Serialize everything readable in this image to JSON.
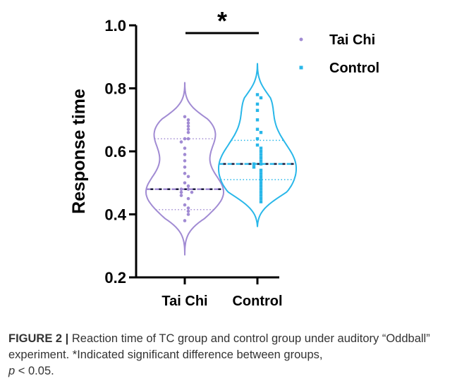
{
  "chart_data": {
    "type": "violin",
    "ylabel": "Response time",
    "ylim": [
      0.2,
      1.0
    ],
    "yticks": [
      "0.2",
      "0.4",
      "0.6",
      "0.8",
      "1.0"
    ],
    "categories": [
      "Tai Chi",
      "Control"
    ],
    "legend": {
      "position": "top-right"
    },
    "significance": {
      "marker": "*",
      "between": [
        "Tai Chi",
        "Control"
      ]
    },
    "series": [
      {
        "name": "Tai Chi",
        "color": "#a18bd3",
        "median": 0.48,
        "q1": 0.415,
        "q3": 0.64,
        "range": [
          0.27,
          0.82
        ],
        "points": [
          0.71,
          0.7,
          0.69,
          0.68,
          0.67,
          0.66,
          0.64,
          0.64,
          0.63,
          0.61,
          0.59,
          0.57,
          0.55,
          0.53,
          0.52,
          0.5,
          0.49,
          0.48,
          0.48,
          0.47,
          0.47,
          0.46,
          0.45,
          0.43,
          0.42,
          0.41,
          0.4,
          0.38
        ]
      },
      {
        "name": "Control",
        "color": "#29b7e9",
        "median": 0.56,
        "q1": 0.51,
        "q3": 0.635,
        "range": [
          0.36,
          0.88
        ],
        "points": [
          0.78,
          0.77,
          0.75,
          0.73,
          0.7,
          0.67,
          0.66,
          0.64,
          0.62,
          0.61,
          0.6,
          0.59,
          0.58,
          0.57,
          0.56,
          0.56,
          0.55,
          0.54,
          0.53,
          0.52,
          0.51,
          0.5,
          0.49,
          0.48,
          0.47,
          0.46,
          0.45,
          0.44
        ]
      }
    ]
  },
  "caption": {
    "label": "FIGURE 2 |",
    "text": "Reaction time of TC group and control group under auditory “Oddball” experiment. *Indicated significant difference between groups,",
    "p_symbol": "p",
    "p_rest": "< 0.05."
  }
}
